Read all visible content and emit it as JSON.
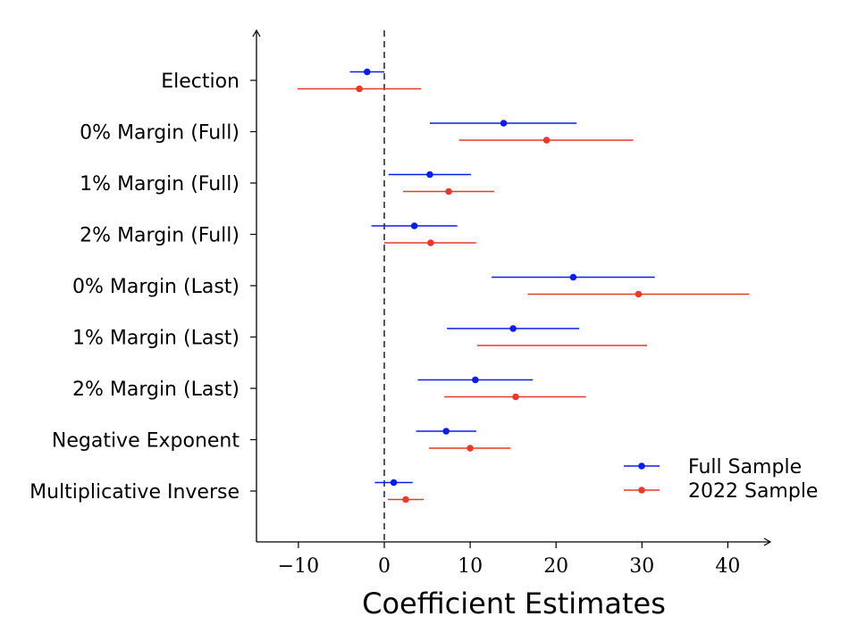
{
  "chart_data": {
    "type": "scatter",
    "subtype": "coefficient-plot-with-confidence-intervals",
    "title": "",
    "xlabel": "Coefficient Estimates",
    "ylabel": "",
    "xlim": [
      -15,
      44
    ],
    "x_ticks": [
      -10,
      0,
      10,
      20,
      30,
      40
    ],
    "x_tick_labels": [
      "−10",
      "0",
      "10",
      "20",
      "30",
      "40"
    ],
    "reference_line_x": 0,
    "grid": false,
    "legend_position": "bottom-right",
    "categories": [
      "Election",
      "0% Margin (Full)",
      "1% Margin (Full)",
      "2% Margin (Full)",
      "0% Margin (Last)",
      "1% Margin (Last)",
      "2% Margin (Last)",
      "Negative Exponent",
      "Multiplicative Inverse"
    ],
    "series": [
      {
        "name": "Full Sample",
        "color": "#0b1ee6",
        "estimates": [
          -2.0,
          13.9,
          5.3,
          3.5,
          22.0,
          15.0,
          10.6,
          7.2,
          1.1
        ],
        "lower": [
          -4.0,
          5.3,
          0.5,
          -1.5,
          12.5,
          7.3,
          3.9,
          3.7,
          -1.1
        ],
        "upper": [
          0.0,
          22.4,
          10.1,
          8.5,
          31.5,
          22.7,
          17.3,
          10.7,
          3.3
        ]
      },
      {
        "name": "2022 Sample",
        "color": "#e8392d",
        "estimates": [
          -2.9,
          18.9,
          7.5,
          5.4,
          29.6,
          null,
          15.3,
          10.0,
          2.5
        ],
        "lower": [
          -10.1,
          8.7,
          2.2,
          0.0,
          16.7,
          10.8,
          7.0,
          5.2,
          0.4
        ],
        "upper": [
          4.3,
          29.0,
          12.8,
          10.7,
          42.5,
          30.6,
          23.5,
          14.7,
          4.6
        ]
      }
    ]
  }
}
